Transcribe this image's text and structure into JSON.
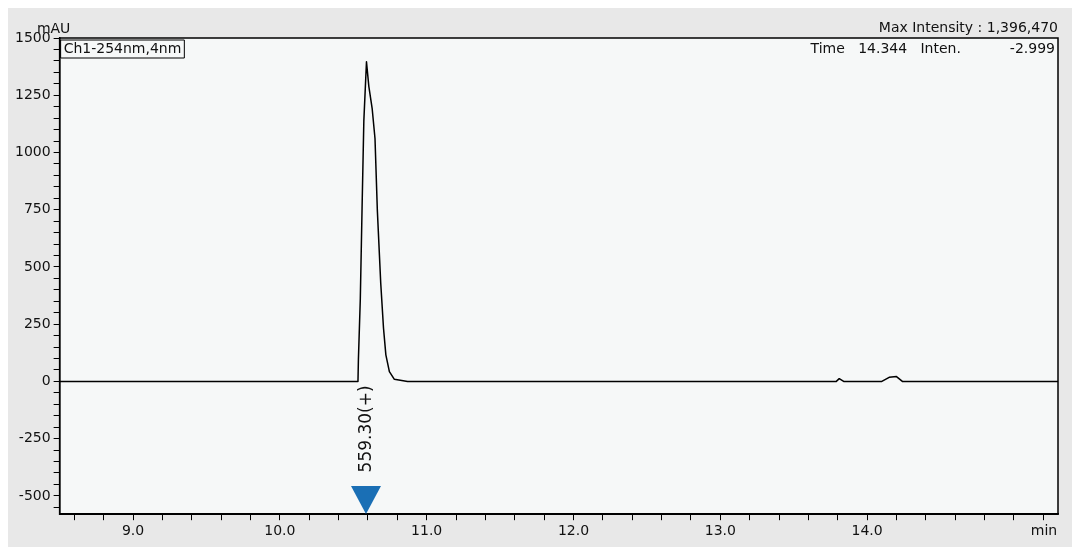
{
  "chart_data": {
    "type": "line",
    "xlabel": "min",
    "ylabel": "mAU",
    "x": [
      8.5,
      10.532,
      10.535,
      10.548,
      10.56,
      10.572,
      10.59,
      10.606,
      10.629,
      10.648,
      10.664,
      10.687,
      10.706,
      10.722,
      10.746,
      10.78,
      10.87,
      13.79,
      13.81,
      13.84,
      14.1,
      14.15,
      14.2,
      14.24,
      15.3
    ],
    "series": [
      {
        "color": "#000000",
        "values": [
          0,
          0,
          95,
          361,
          760,
          1138,
          1396,
          1289,
          1190,
          1061,
          747,
          430,
          232,
          116,
          43,
          9,
          0,
          0,
          12,
          0,
          0,
          18,
          21,
          0,
          0
        ]
      }
    ],
    "xlim": [
      8.5,
      15.3
    ],
    "ylim": [
      -580,
      1500
    ],
    "xticks": [
      {
        "value": 8.6,
        "label": null
      },
      {
        "value": 8.8,
        "label": null
      },
      {
        "value": 9,
        "label": "9.0"
      },
      {
        "value": 9.2,
        "label": null
      },
      {
        "value": 9.4,
        "label": null
      },
      {
        "value": 9.6,
        "label": null
      },
      {
        "value": 9.8,
        "label": null
      },
      {
        "value": 10,
        "label": "10.0"
      },
      {
        "value": 10.2,
        "label": null
      },
      {
        "value": 10.4,
        "label": null
      },
      {
        "value": 10.6,
        "label": null
      },
      {
        "value": 10.8,
        "label": null
      },
      {
        "value": 11,
        "label": "11.0"
      },
      {
        "value": 11.2,
        "label": null
      },
      {
        "value": 11.4,
        "label": null
      },
      {
        "value": 11.6,
        "label": null
      },
      {
        "value": 11.8,
        "label": null
      },
      {
        "value": 12,
        "label": "12.0"
      },
      {
        "value": 12.2,
        "label": null
      },
      {
        "value": 12.4,
        "label": null
      },
      {
        "value": 12.6,
        "label": null
      },
      {
        "value": 12.8,
        "label": null
      },
      {
        "value": 13,
        "label": "13.0"
      },
      {
        "value": 13.2,
        "label": null
      },
      {
        "value": 13.4,
        "label": null
      },
      {
        "value": 13.6,
        "label": null
      },
      {
        "value": 13.8,
        "label": null
      },
      {
        "value": 14,
        "label": "14.0"
      },
      {
        "value": 14.2,
        "label": null
      },
      {
        "value": 14.4,
        "label": null
      },
      {
        "value": 14.6,
        "label": null
      },
      {
        "value": 14.8,
        "label": null
      },
      {
        "value": 15,
        "label": null
      },
      {
        "value": 15.2,
        "label": null
      }
    ],
    "yticks": [
      {
        "value": -550,
        "label": null
      },
      -500,
      {
        "value": -450,
        "label": null
      },
      {
        "value": -400,
        "label": null
      },
      {
        "value": -350,
        "label": null
      },
      {
        "value": -300,
        "label": null
      },
      -250,
      {
        "value": -200,
        "label": null
      },
      {
        "value": -150,
        "label": null
      },
      {
        "value": -100,
        "label": null
      },
      {
        "value": -50,
        "label": null
      },
      0,
      {
        "value": 50,
        "label": null
      },
      {
        "value": 100,
        "label": null
      },
      {
        "value": 150,
        "label": null
      },
      {
        "value": 200,
        "label": null
      },
      250,
      {
        "value": 300,
        "label": null
      },
      {
        "value": 350,
        "label": null
      },
      {
        "value": 400,
        "label": null
      },
      {
        "value": 450,
        "label": null
      },
      500,
      {
        "value": 550,
        "label": null
      },
      {
        "value": 600,
        "label": null
      },
      {
        "value": 650,
        "label": null
      },
      {
        "value": 700,
        "label": null
      },
      750,
      {
        "value": 800,
        "label": null
      },
      {
        "value": 850,
        "label": null
      },
      {
        "value": 900,
        "label": null
      },
      {
        "value": 950,
        "label": null
      },
      1000,
      {
        "value": 1050,
        "label": null
      },
      {
        "value": 1100,
        "label": null
      },
      {
        "value": 1150,
        "label": null
      },
      {
        "value": 1200,
        "label": null
      },
      1250,
      {
        "value": 1300,
        "label": null
      },
      {
        "value": 1350,
        "label": null
      },
      {
        "value": 1400,
        "label": null
      },
      {
        "value": 1450,
        "label": null
      },
      1500
    ],
    "grid": false,
    "legend": false,
    "marker": "none",
    "line_style": "solid",
    "annotations": [
      "Ch1-254nm,4nm",
      "Max Intensity : 1,396,470",
      "Time   14.344   Inten.           -2.999",
      "559.30(+)"
    ]
  }
}
